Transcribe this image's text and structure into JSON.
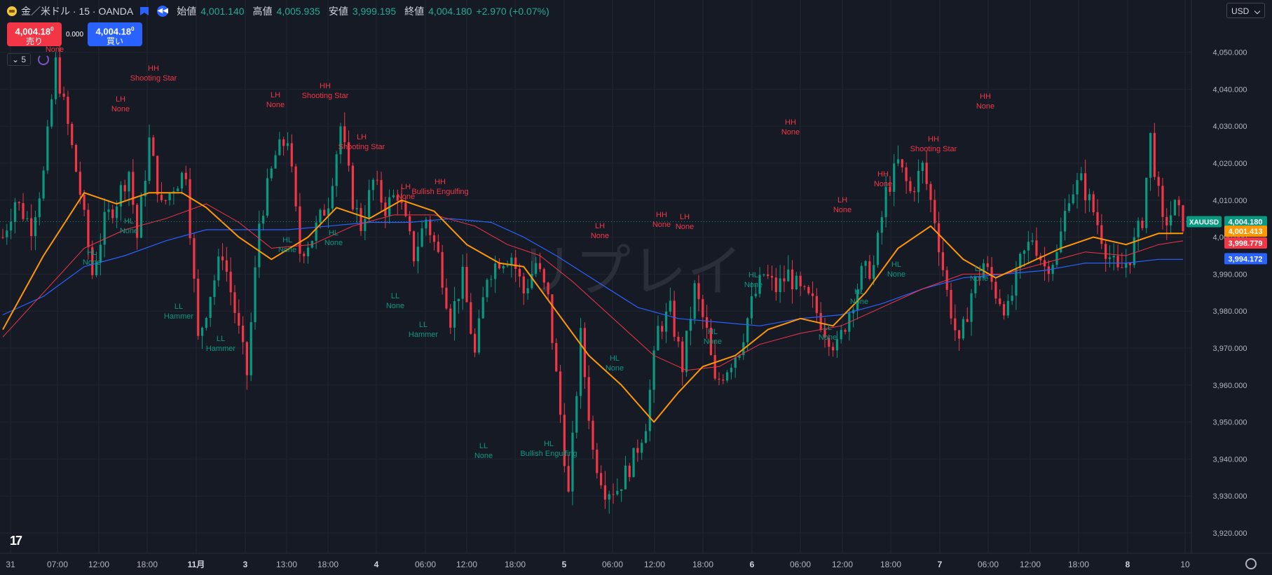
{
  "legend": {
    "symbol": "金／米ドル · 15 · OANDA",
    "open_label": "始値",
    "open": "4,001.140",
    "high_label": "高値",
    "high": "4,005.935",
    "low_label": "安値",
    "low": "3,999.195",
    "close_label": "終値",
    "close": "4,004.180",
    "change": "+2.970 (+0.07%)"
  },
  "trade": {
    "sell_price": "4,004.18",
    "sell_sup": "0",
    "sell_label": "売り",
    "spread": "0.000",
    "buy_price": "4,004.18",
    "buy_sup": "0",
    "buy_label": "買い"
  },
  "interval_value": "5",
  "currency": "USD",
  "watermark": "リプレイ",
  "colors": {
    "up": "#089981",
    "down": "#f23645",
    "ma_orange": "#ff9800",
    "ma_red": "#f23645",
    "ma_blue": "#2962ff",
    "background": "#161a25"
  },
  "chart_data": {
    "type": "candlestick",
    "ylim": [
      3913,
      4056
    ],
    "y_ticks": [
      3920,
      3930,
      3940,
      3950,
      3960,
      3970,
      3980,
      3990,
      4000,
      4010,
      4020,
      4030,
      4040,
      4050
    ],
    "y_tick_labels": [
      "3,920.000",
      "3,930.000",
      "3,940.000",
      "3,950.000",
      "3,960.000",
      "3,970.000",
      "3,980.000",
      "3,990.000",
      "4,000.000",
      "4,010.000",
      "4,020.000",
      "4,030.000",
      "4,040.000",
      "4,050.000"
    ],
    "x_labels": [
      "31",
      "07:00",
      "12:00",
      "18:00",
      "11月",
      "3",
      "13:00",
      "18:00",
      "4",
      "06:00",
      "12:00",
      "18:00",
      "5",
      "06:00",
      "12:00",
      "18:00",
      "6",
      "06:00",
      "12:00",
      "18:00",
      "7",
      "06:00",
      "12:00",
      "18:00",
      "8",
      "10"
    ],
    "x_label_bold": [
      "11月",
      "3",
      "4",
      "5",
      "6",
      "7",
      "8"
    ],
    "price_labels": [
      {
        "name": "XAUUSD",
        "value": 4004.18,
        "text": "4,004.180",
        "color": "#089981"
      },
      {
        "value": 4001.413,
        "text": "4,001.413",
        "color": "#ff9800"
      },
      {
        "value": 3998.779,
        "text": "3,998.779",
        "color": "#f23645"
      },
      {
        "value": 3994.172,
        "text": "3,994.172",
        "color": "#2962ff"
      }
    ],
    "candles_path": [
      [
        0,
        4000
      ],
      [
        3,
        4010
      ],
      [
        7,
        4003
      ],
      [
        10,
        4017
      ],
      [
        13,
        4047
      ],
      [
        16,
        4030
      ],
      [
        19,
        4012
      ],
      [
        22,
        3990
      ],
      [
        25,
        4004
      ],
      [
        28,
        4010
      ],
      [
        31,
        4018
      ],
      [
        33,
        4000
      ],
      [
        36,
        4026
      ],
      [
        39,
        4008
      ],
      [
        42,
        4014
      ],
      [
        45,
        4018
      ],
      [
        48,
        3972
      ],
      [
        51,
        3985
      ],
      [
        54,
        3996
      ],
      [
        57,
        3980
      ],
      [
        60,
        3963
      ],
      [
        63,
        4004
      ],
      [
        67,
        4022
      ],
      [
        70,
        4027
      ],
      [
        73,
        3996
      ],
      [
        76,
        4000
      ],
      [
        80,
        4010
      ],
      [
        83,
        4030
      ],
      [
        86,
        4010
      ],
      [
        88,
        4003
      ],
      [
        91,
        4015
      ],
      [
        94,
        4008
      ],
      [
        97,
        4012
      ],
      [
        101,
        3995
      ],
      [
        104,
        4005
      ],
      [
        107,
        3995
      ],
      [
        110,
        3978
      ],
      [
        113,
        3989
      ],
      [
        116,
        3968
      ],
      [
        119,
        3990
      ],
      [
        122,
        3994
      ],
      [
        125,
        3995
      ],
      [
        128,
        3985
      ],
      [
        131,
        3993
      ],
      [
        134,
        3983
      ],
      [
        137,
        3952
      ],
      [
        139,
        3930
      ],
      [
        142,
        3973
      ],
      [
        145,
        3942
      ],
      [
        148,
        3932
      ],
      [
        151,
        3932
      ],
      [
        155,
        3940
      ],
      [
        158,
        3950
      ],
      [
        161,
        3975
      ],
      [
        164,
        3980
      ],
      [
        167,
        3965
      ],
      [
        170,
        3986
      ],
      [
        173,
        3974
      ],
      [
        175,
        3960
      ],
      [
        178,
        3965
      ],
      [
        181,
        3970
      ],
      [
        184,
        3982
      ],
      [
        187,
        3990
      ],
      [
        190,
        3986
      ],
      [
        193,
        3990
      ],
      [
        196,
        3985
      ],
      [
        199,
        3982
      ],
      [
        202,
        3975
      ],
      [
        205,
        3970
      ],
      [
        208,
        3980
      ],
      [
        211,
        3990
      ],
      [
        214,
        3992
      ],
      [
        217,
        4012
      ],
      [
        220,
        4020
      ],
      [
        223,
        4012
      ],
      [
        226,
        4019
      ],
      [
        229,
        4005
      ],
      [
        232,
        3985
      ],
      [
        235,
        3970
      ],
      [
        238,
        3985
      ],
      [
        241,
        3993
      ],
      [
        244,
        3985
      ],
      [
        247,
        3980
      ],
      [
        250,
        3993
      ],
      [
        253,
        4000
      ],
      [
        256,
        3992
      ],
      [
        259,
        3995
      ],
      [
        262,
        4012
      ],
      [
        265,
        4015
      ],
      [
        268,
        4007
      ],
      [
        271,
        3997
      ],
      [
        274,
        3990
      ],
      [
        277,
        3995
      ],
      [
        280,
        4005
      ],
      [
        282,
        4027
      ],
      [
        285,
        4003
      ],
      [
        288,
        4008
      ],
      [
        290,
        4004
      ]
    ],
    "ma_orange": [
      [
        0,
        3975
      ],
      [
        10,
        3995
      ],
      [
        20,
        4012
      ],
      [
        28,
        4009
      ],
      [
        36,
        4012
      ],
      [
        44,
        4012
      ],
      [
        50,
        4008
      ],
      [
        58,
        4000
      ],
      [
        66,
        3994
      ],
      [
        75,
        4000
      ],
      [
        82,
        4008
      ],
      [
        90,
        4005
      ],
      [
        98,
        4010
      ],
      [
        106,
        4007
      ],
      [
        114,
        3998
      ],
      [
        122,
        3993
      ],
      [
        128,
        3992
      ],
      [
        136,
        3980
      ],
      [
        144,
        3968
      ],
      [
        152,
        3960
      ],
      [
        160,
        3950
      ],
      [
        166,
        3958
      ],
      [
        172,
        3965
      ],
      [
        180,
        3968
      ],
      [
        188,
        3975
      ],
      [
        196,
        3978
      ],
      [
        204,
        3976
      ],
      [
        212,
        3985
      ],
      [
        220,
        3997
      ],
      [
        228,
        4003
      ],
      [
        236,
        3994
      ],
      [
        244,
        3989
      ],
      [
        252,
        3993
      ],
      [
        260,
        3997
      ],
      [
        268,
        4000
      ],
      [
        276,
        3998
      ],
      [
        284,
        4001
      ],
      [
        290,
        4001
      ]
    ],
    "ma_red": [
      [
        0,
        3973
      ],
      [
        10,
        3985
      ],
      [
        20,
        3997
      ],
      [
        30,
        4002
      ],
      [
        40,
        4005
      ],
      [
        50,
        4009
      ],
      [
        58,
        4004
      ],
      [
        66,
        3997
      ],
      [
        76,
        3998
      ],
      [
        86,
        4003
      ],
      [
        96,
        4006
      ],
      [
        106,
        4006
      ],
      [
        116,
        4003
      ],
      [
        124,
        3998
      ],
      [
        132,
        3995
      ],
      [
        140,
        3988
      ],
      [
        150,
        3978
      ],
      [
        160,
        3968
      ],
      [
        168,
        3964
      ],
      [
        176,
        3965
      ],
      [
        186,
        3971
      ],
      [
        196,
        3974
      ],
      [
        206,
        3976
      ],
      [
        216,
        3981
      ],
      [
        226,
        3986
      ],
      [
        236,
        3990
      ],
      [
        246,
        3990
      ],
      [
        256,
        3993
      ],
      [
        266,
        3996
      ],
      [
        276,
        3995
      ],
      [
        284,
        3998
      ],
      [
        290,
        3999
      ]
    ],
    "ma_blue": [
      [
        0,
        3979
      ],
      [
        10,
        3984
      ],
      [
        20,
        3992
      ],
      [
        30,
        3995
      ],
      [
        40,
        3999
      ],
      [
        50,
        4002
      ],
      [
        60,
        4002
      ],
      [
        70,
        4002
      ],
      [
        80,
        4003
      ],
      [
        90,
        4004
      ],
      [
        100,
        4004
      ],
      [
        110,
        4005
      ],
      [
        120,
        4004
      ],
      [
        128,
        4000
      ],
      [
        136,
        3995
      ],
      [
        146,
        3988
      ],
      [
        156,
        3981
      ],
      [
        166,
        3978
      ],
      [
        176,
        3977
      ],
      [
        186,
        3976
      ],
      [
        196,
        3978
      ],
      [
        206,
        3979
      ],
      [
        216,
        3982
      ],
      [
        226,
        3986
      ],
      [
        236,
        3989
      ],
      [
        246,
        3990
      ],
      [
        256,
        3991
      ],
      [
        266,
        3993
      ],
      [
        276,
        3993
      ],
      [
        284,
        3994
      ],
      [
        290,
        3994
      ]
    ],
    "annotations": [
      {
        "x": 78,
        "y": 60,
        "top": "",
        "bottom": "None",
        "color": "#f23645"
      },
      {
        "x": 219,
        "y": 101,
        "top": "HH",
        "bottom": "Shooting Star",
        "color": "#f23645"
      },
      {
        "x": 172,
        "y": 145,
        "top": "LH",
        "bottom": "None",
        "color": "#f23645"
      },
      {
        "x": 393,
        "y": 139,
        "top": "LH",
        "bottom": "None",
        "color": "#f23645"
      },
      {
        "x": 464,
        "y": 126,
        "top": "HH",
        "bottom": "Shooting Star",
        "color": "#f23645"
      },
      {
        "x": 516,
        "y": 199,
        "top": "LH",
        "bottom": "Shooting Star",
        "color": "#f23645"
      },
      {
        "x": 579,
        "y": 270,
        "top": "LH",
        "bottom": "None",
        "color": "#f23645"
      },
      {
        "x": 628,
        "y": 263,
        "top": "HH",
        "bottom": "Bullish Engulfing",
        "color": "#f23645"
      },
      {
        "x": 856,
        "y": 326,
        "top": "LH",
        "bottom": "None",
        "color": "#f23645"
      },
      {
        "x": 944,
        "y": 310,
        "top": "HH",
        "bottom": "None",
        "color": "#f23645"
      },
      {
        "x": 977,
        "y": 313,
        "top": "LH",
        "bottom": "None",
        "color": "#f23645"
      },
      {
        "x": 1128,
        "y": 178,
        "top": "HH",
        "bottom": "None",
        "color": "#f23645"
      },
      {
        "x": 1202,
        "y": 289,
        "top": "LH",
        "bottom": "None",
        "color": "#f23645"
      },
      {
        "x": 1260,
        "y": 252,
        "top": "HH",
        "bottom": "None",
        "color": "#f23645"
      },
      {
        "x": 1332,
        "y": 202,
        "top": "HH",
        "bottom": "Shooting Star",
        "color": "#f23645"
      },
      {
        "x": 1406,
        "y": 141,
        "top": "HH",
        "bottom": "None",
        "color": "#f23645"
      },
      {
        "x": 184,
        "y": 319,
        "top": "HL",
        "bottom": "None",
        "color": "#089981"
      },
      {
        "x": 131,
        "y": 364,
        "top": "HL",
        "bottom": "None",
        "color": "#089981"
      },
      {
        "x": 255,
        "y": 441,
        "top": "LL",
        "bottom": "Hammer",
        "color": "#089981"
      },
      {
        "x": 315,
        "y": 487,
        "top": "LL",
        "bottom": "Hammer",
        "color": "#089981"
      },
      {
        "x": 410,
        "y": 346,
        "top": "HL",
        "bottom": "None",
        "color": "#089981"
      },
      {
        "x": 476,
        "y": 336,
        "top": "HL",
        "bottom": "None",
        "color": "#089981"
      },
      {
        "x": 564,
        "y": 426,
        "top": "LL",
        "bottom": "None",
        "color": "#089981"
      },
      {
        "x": 604,
        "y": 467,
        "top": "LL",
        "bottom": "Hammer",
        "color": "#089981"
      },
      {
        "x": 690,
        "y": 640,
        "top": "LL",
        "bottom": "None",
        "color": "#089981"
      },
      {
        "x": 783,
        "y": 637,
        "top": "HL",
        "bottom": "Bullish Engulfing",
        "color": "#089981"
      },
      {
        "x": 877,
        "y": 515,
        "top": "HL",
        "bottom": "None",
        "color": "#089981"
      },
      {
        "x": 1017,
        "y": 477,
        "top": "HL",
        "bottom": "None",
        "color": "#089981"
      },
      {
        "x": 1075,
        "y": 396,
        "top": "HL",
        "bottom": "None",
        "color": "#089981"
      },
      {
        "x": 1181,
        "y": 471,
        "top": "LL",
        "bottom": "None",
        "color": "#089981"
      },
      {
        "x": 1226,
        "y": 420,
        "top": "HL",
        "bottom": "None",
        "color": "#089981"
      },
      {
        "x": 1279,
        "y": 381,
        "top": "HL",
        "bottom": "None",
        "color": "#089981"
      },
      {
        "x": 1397,
        "y": 387,
        "top": "LL",
        "bottom": "None",
        "color": "#089981"
      }
    ]
  }
}
